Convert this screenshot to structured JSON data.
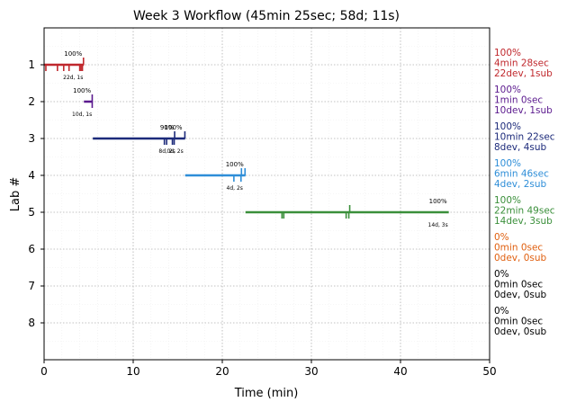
{
  "chart_data": {
    "type": "timeline",
    "title": "Week 3 Workflow (45min 25sec; 58d; 11s)",
    "xlabel": "Time (min)",
    "ylabel": "Lab #",
    "xlim": [
      0,
      50
    ],
    "ylim": [
      0,
      9
    ],
    "y_inverted": true,
    "x_ticks": [
      0,
      10,
      20,
      30,
      40,
      50
    ],
    "y_ticks": [
      1,
      2,
      3,
      4,
      5,
      6,
      7,
      8
    ],
    "grid": true,
    "labs": [
      {
        "lab": 1,
        "color": "#c0282d",
        "start": 0.0,
        "end": 4.47,
        "top_label": "100%",
        "bottom_label": "22d, 1s",
        "ticks_down": [
          0.2,
          1.5,
          2.2,
          2.8,
          4.0,
          4.15,
          4.3
        ],
        "ticks_up": [
          4.42
        ],
        "summary": [
          "100%",
          "4min 28sec",
          "22dev, 1sub"
        ]
      },
      {
        "lab": 2,
        "color": "#5b1a8e",
        "start": 4.47,
        "end": 5.47,
        "top_label": "100%",
        "bottom_label": "10d, 1s",
        "ticks_down": [
          5.4
        ],
        "ticks_up": [
          5.4
        ],
        "summary": [
          "100%",
          "1min 0sec",
          "10dev, 1sub"
        ]
      },
      {
        "lab": 3,
        "color": "#1c2a7a",
        "start": 5.47,
        "end": 15.83,
        "top_label": "",
        "bottom_label": "",
        "ticks_down": [
          13.5,
          13.75,
          14.4,
          14.6
        ],
        "ticks_up": [
          14.65,
          15.8
        ],
        "summary": [
          "100%",
          "10min 22sec",
          "8dev, 4sub"
        ]
      },
      {
        "lab": 4,
        "color": "#2e8ed8",
        "start": 15.83,
        "end": 22.6,
        "top_label": "100%",
        "bottom_label": "4d, 2s",
        "ticks_down": [
          21.3,
          22.1
        ],
        "ticks_up": [
          22.15,
          22.55
        ],
        "summary": [
          "100%",
          "6min 46sec",
          "4dev, 2sub"
        ]
      },
      {
        "lab": 5,
        "color": "#3a8f3a",
        "start": 22.6,
        "end": 45.42,
        "top_label": "100%",
        "bottom_label": "14d, 3s",
        "ticks_down": [
          26.7,
          26.9,
          33.9,
          34.2
        ],
        "ticks_up": [
          34.3
        ],
        "summary": [
          "100%",
          "22min 49sec",
          "14dev, 3sub"
        ]
      },
      {
        "lab": 6,
        "color": "#e06010",
        "start": 45.42,
        "end": 45.42,
        "top_label": "",
        "bottom_label": "",
        "ticks_down": [],
        "ticks_up": [],
        "summary": [
          "0%",
          "0min 0sec",
          "0dev, 0sub"
        ]
      },
      {
        "lab": 7,
        "color": "#000000",
        "start": 45.42,
        "end": 45.42,
        "top_label": "",
        "bottom_label": "",
        "ticks_down": [],
        "ticks_up": [],
        "summary": [
          "0%",
          "0min 0sec",
          "0dev, 0sub"
        ]
      },
      {
        "lab": 8,
        "color": "#000000",
        "start": 45.42,
        "end": 45.42,
        "top_label": "",
        "bottom_label": "",
        "ticks_down": [],
        "ticks_up": [],
        "summary": [
          "0%",
          "0min 0sec",
          "0dev, 0sub"
        ]
      }
    ],
    "annotations": [
      {
        "lab": 3,
        "x": 13.8,
        "text": "90%",
        "pos": "top"
      },
      {
        "lab": 3,
        "x": 14.5,
        "text": "100%",
        "pos": "top"
      },
      {
        "lab": 3,
        "x": 13.8,
        "text": "8d, 2s",
        "pos": "bottom"
      },
      {
        "lab": 3,
        "x": 14.7,
        "text": "0d, 2s",
        "pos": "bottom"
      }
    ]
  }
}
